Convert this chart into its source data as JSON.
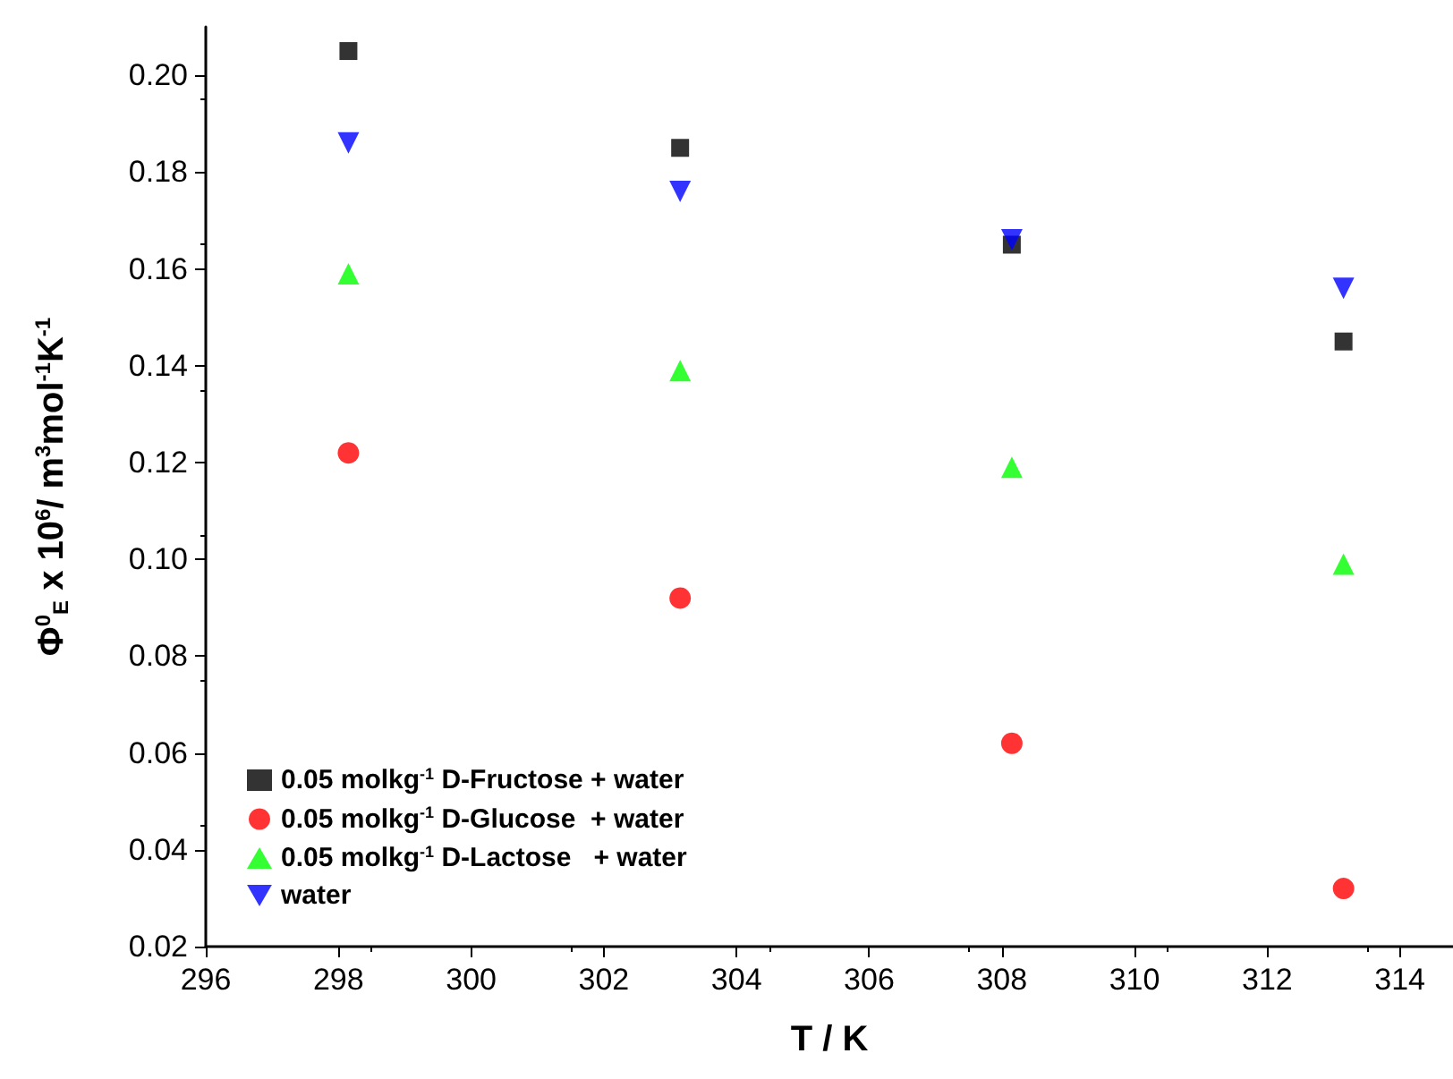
{
  "chart_data": {
    "type": "scatter",
    "xlabel": "T / K",
    "ylabel": "Φ$^{0}$$_{E}$ x 10$^{6}$/ m$^{3}$mol$^{-1}$K$^{-1}$",
    "x": [
      298.15,
      303.15,
      308.15,
      313.15
    ],
    "series": [
      {
        "name": "0.05 molkg$^{-1}$ D-Fructose + water",
        "color": "#000000",
        "marker": "square",
        "values": [
          0.205,
          0.185,
          0.165,
          0.145
        ]
      },
      {
        "name": "0.05 molkg$^{-1}$ D-Glucose  + water",
        "color": "#ff0000",
        "marker": "circle",
        "values": [
          0.122,
          0.092,
          0.062,
          0.032
        ]
      },
      {
        "name": "0.05 molkg$^{-1}$ D-Lactose   + water",
        "color": "#00ff00",
        "marker": "triangle",
        "values": [
          0.159,
          0.139,
          0.119,
          0.099
        ]
      },
      {
        "name": "water",
        "color": "#0000ff",
        "marker": "triangle-down",
        "values": [
          0.186,
          0.176,
          0.166,
          0.156
        ]
      }
    ],
    "xlim": [
      296,
      314.8
    ],
    "xticks": [
      296,
      298,
      300,
      302,
      304,
      306,
      308,
      310,
      312,
      314
    ],
    "ylim": [
      0.02,
      0.21
    ],
    "yticks": [
      {
        "value": 0.02,
        "label": "0.02"
      },
      {
        "value": 0.04,
        "label": "0.04"
      },
      {
        "value": 0.06,
        "label": "0.06"
      },
      {
        "value": 0.08,
        "label": "0.08"
      },
      {
        "value": 0.1,
        "label": "0.10"
      },
      {
        "value": 0.12,
        "label": "0.12"
      },
      {
        "value": 0.14,
        "label": "0.14"
      },
      {
        "value": 0.16,
        "label": "0.16"
      },
      {
        "value": 0.18,
        "label": "0.18"
      },
      {
        "value": 0.2,
        "label": "0.20"
      }
    ],
    "grid": false,
    "legend": "bottom left"
  }
}
